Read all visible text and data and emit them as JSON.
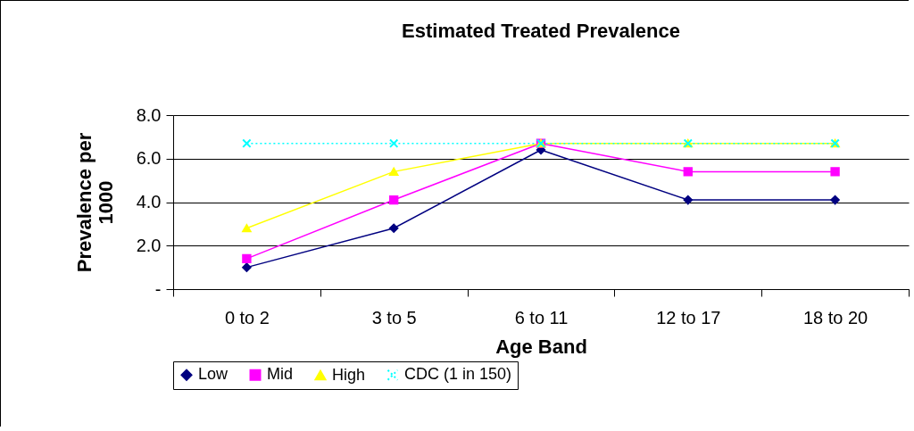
{
  "chart_data": {
    "type": "line",
    "title": "Estimated Treated Prevalence",
    "xlabel": "Age Band",
    "ylabel": "Prevalence per 1000",
    "categories": [
      "0 to 2",
      "3 to 5",
      "6 to 11",
      "12 to 17",
      "18 to 20"
    ],
    "series": [
      {
        "name": "Low",
        "color": "#000080",
        "marker": "diamond",
        "line_style": "solid",
        "values": [
          1.0,
          2.8,
          6.4,
          4.1,
          4.1
        ]
      },
      {
        "name": "Mid",
        "color": "#ff00ff",
        "marker": "square",
        "line_style": "solid",
        "values": [
          1.4,
          4.1,
          6.7,
          5.4,
          5.4
        ]
      },
      {
        "name": "High",
        "color": "#ffff00",
        "marker": "triangle",
        "line_style": "solid",
        "values": [
          2.8,
          5.4,
          6.7,
          6.7,
          6.7
        ]
      },
      {
        "name": "CDC (1 in 150)",
        "color": "#00ffff",
        "marker": "cross",
        "line_style": "dotted",
        "values": [
          6.7,
          6.7,
          6.7,
          6.7,
          6.7
        ]
      }
    ],
    "ylim": [
      0,
      8
    ],
    "yticks": [
      {
        "value": 0,
        "label": "-"
      },
      {
        "value": 2,
        "label": "2.0"
      },
      {
        "value": 4,
        "label": "4.0"
      },
      {
        "value": 6,
        "label": "6.0"
      },
      {
        "value": 8,
        "label": "8.0"
      }
    ],
    "grid": "y",
    "legend": "bottom"
  }
}
